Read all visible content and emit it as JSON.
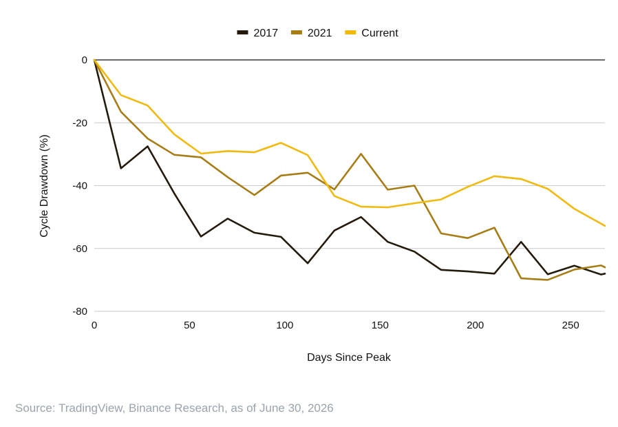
{
  "chart_data": {
    "type": "line",
    "xlabel": "Days Since Peak",
    "ylabel": "Cycle Drawdown (%)",
    "xlim": [
      0,
      268
    ],
    "ylim": [
      -80,
      0
    ],
    "x_ticks": [
      0,
      50,
      100,
      150,
      200,
      250
    ],
    "y_ticks": [
      0,
      -20,
      -40,
      -60,
      -80
    ],
    "grid": "horizontal",
    "legend_position": "top",
    "series": [
      {
        "name": "2017",
        "color": "#231a0c",
        "x": [
          0,
          14,
          28,
          42,
          56,
          70,
          84,
          98,
          112,
          126,
          140,
          154,
          168,
          182,
          196,
          210,
          224,
          238,
          252,
          266,
          268
        ],
        "values": [
          0,
          -34.5,
          -27.5,
          -42.5,
          -56.2,
          -50.5,
          -55,
          -56.3,
          -64.7,
          -54.3,
          -50,
          -57.9,
          -61,
          -66.8,
          -67.3,
          -68,
          -57.9,
          -68.2,
          -65.5,
          -68.3,
          -68
        ]
      },
      {
        "name": "2021",
        "color": "#a87c14",
        "x": [
          0,
          14,
          28,
          42,
          56,
          70,
          84,
          98,
          112,
          126,
          140,
          154,
          168,
          182,
          196,
          210,
          224,
          238,
          252,
          266,
          268
        ],
        "values": [
          0,
          -16.5,
          -25,
          -30.2,
          -31,
          -37.3,
          -43,
          -36.8,
          -35.9,
          -41.2,
          -29.9,
          -41.3,
          -40,
          -55.2,
          -56.7,
          -53.4,
          -69.5,
          -70,
          -66.7,
          -65.4,
          -66
        ]
      },
      {
        "name": "Current",
        "color": "#f0b90b",
        "x": [
          0,
          14,
          28,
          42,
          56,
          70,
          84,
          98,
          112,
          126,
          140,
          154,
          168,
          182,
          196,
          210,
          224,
          238,
          252,
          268
        ],
        "values": [
          0,
          -11.2,
          -14.5,
          -23.7,
          -29.8,
          -29,
          -29.4,
          -26.4,
          -30.3,
          -43.3,
          -46.7,
          -46.9,
          -45.6,
          -44.4,
          -40.4,
          -37,
          -37.9,
          -41,
          -47.4,
          -52.8
        ]
      }
    ]
  },
  "source": "Source: TradingView, Binance Research, as of June 30, 2026"
}
